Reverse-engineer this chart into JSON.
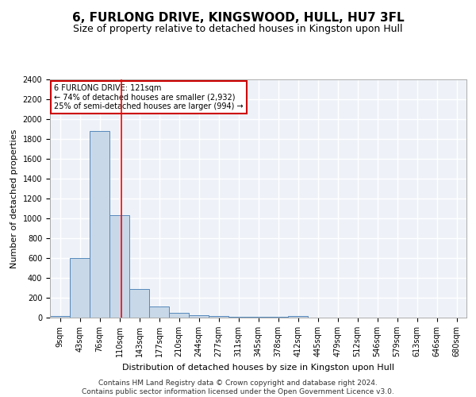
{
  "title": "6, FURLONG DRIVE, KINGSWOOD, HULL, HU7 3FL",
  "subtitle": "Size of property relative to detached houses in Kingston upon Hull",
  "xlabel": "Distribution of detached houses by size in Kingston upon Hull",
  "ylabel": "Number of detached properties",
  "bin_labels": [
    "9sqm",
    "43sqm",
    "76sqm",
    "110sqm",
    "143sqm",
    "177sqm",
    "210sqm",
    "244sqm",
    "277sqm",
    "311sqm",
    "345sqm",
    "378sqm",
    "412sqm",
    "445sqm",
    "479sqm",
    "512sqm",
    "546sqm",
    "579sqm",
    "613sqm",
    "646sqm",
    "680sqm"
  ],
  "bar_values": [
    20,
    600,
    1880,
    1030,
    285,
    110,
    45,
    25,
    20,
    5,
    5,
    5,
    20,
    0,
    0,
    0,
    0,
    0,
    0,
    0,
    0
  ],
  "bar_color": "#c8d8e8",
  "bar_edge_color": "#5588bb",
  "ylim": [
    0,
    2400
  ],
  "yticks": [
    0,
    200,
    400,
    600,
    800,
    1000,
    1200,
    1400,
    1600,
    1800,
    2000,
    2200,
    2400
  ],
  "red_line_x": 3.09,
  "annotation_text": "6 FURLONG DRIVE: 121sqm\n← 74% of detached houses are smaller (2,932)\n25% of semi-detached houses are larger (994) →",
  "annotation_box_color": "#ffffff",
  "annotation_border_color": "#cc0000",
  "footer_line1": "Contains HM Land Registry data © Crown copyright and database right 2024.",
  "footer_line2": "Contains public sector information licensed under the Open Government Licence v3.0.",
  "background_color": "#eef2f8",
  "grid_color": "#ffffff",
  "title_fontsize": 11,
  "subtitle_fontsize": 9,
  "axis_label_fontsize": 8,
  "tick_fontsize": 7,
  "footer_fontsize": 6.5
}
